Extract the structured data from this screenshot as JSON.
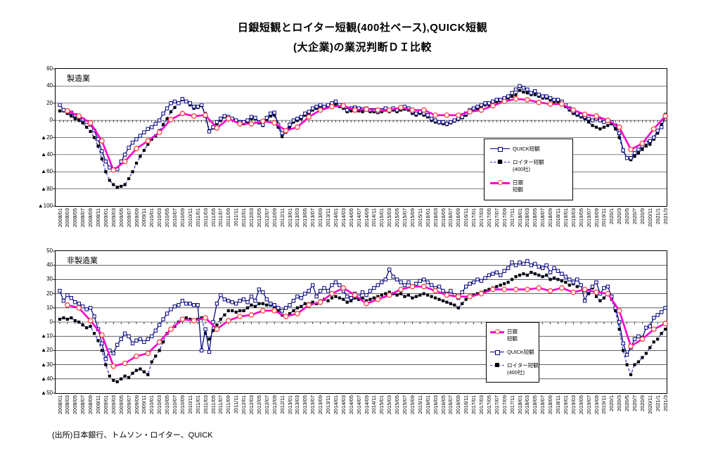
{
  "title": {
    "line1": "日銀短観とロイター短観(400社ベース),QUICK短観",
    "line2": "(大企業)の業況判断ＤＩ比較"
  },
  "source_note": "(出所)日本銀行、トムソン・ロイター、QUICK",
  "x_tick_labels": [
    "2008/01",
    "2008/03",
    "2008/05",
    "2008/07",
    "2008/09",
    "2008/11",
    "2009/01",
    "2009/03",
    "2009/05",
    "2009/07",
    "2009/09",
    "2009/11",
    "2010/01",
    "2010/03",
    "2010/05",
    "2010/07",
    "2010/09",
    "2010/11",
    "2011/01",
    "2011/03",
    "2011/05",
    "2011/07",
    "2011/09",
    "2011/11",
    "2012/01",
    "2012/03",
    "2012/05",
    "2012/07",
    "2012/09",
    "2012/11",
    "2013/01",
    "2013/03",
    "2013/05",
    "2013/07",
    "2013/09",
    "2013/11",
    "2014/01",
    "2014/03",
    "2014/05",
    "2014/07",
    "2014/09",
    "2014/11",
    "2015/01",
    "2015/03",
    "2015/05",
    "2015/07",
    "2015/09",
    "2015/11",
    "2016/01",
    "2016/03",
    "2016/05",
    "2016/07",
    "2016/09",
    "2016/11",
    "2017/01",
    "2017/03",
    "2017/05",
    "2017/07",
    "2017/09",
    "2017/11",
    "2018/01",
    "2018/03",
    "2018/05",
    "2018/07",
    "2018/09",
    "2018/11",
    "2019/01",
    "2019/03",
    "2019/05",
    "2019/07",
    "2019/09",
    "2019/11",
    "2020/1",
    "2020/3",
    "2020/5",
    "2020/7",
    "2020/9",
    "2020/11",
    "2021/1",
    "2021/3"
  ],
  "chart_data": [
    {
      "type": "line",
      "title": "製造業",
      "x_start": "2008/01",
      "x_end": "2021/03",
      "x_freq": "monthly",
      "x_points": 159,
      "ylim": [
        -100,
        60
      ],
      "ytick_step": 20,
      "y_tick_labels": [
        "60",
        "40",
        "20",
        "0",
        "▲20",
        "▲40",
        "▲60",
        "▲80",
        "▲100"
      ],
      "grid": "horizontal",
      "zero_axis_tick_every_months": 1,
      "legend_position": "inside-middle-right",
      "legend_order": [
        "quick",
        "reuters",
        "boj"
      ],
      "series": {
        "quick": {
          "name": "QUICK短観",
          "label_lines": [
            "QUICK短観"
          ],
          "color": "#000080",
          "line": "solid",
          "marker": "open-square",
          "freq": "monthly",
          "values": [
            18,
            12,
            10,
            9,
            6,
            4,
            1,
            -2,
            -5,
            -12,
            -22,
            -36,
            -48,
            -55,
            -57,
            -57,
            -48,
            -40,
            -32,
            -26,
            -22,
            -18,
            -14,
            -10,
            -8,
            -4,
            0,
            8,
            14,
            20,
            22,
            20,
            25,
            22,
            20,
            16,
            16,
            18,
            5,
            -13,
            -8,
            -2,
            2,
            5,
            4,
            2,
            0,
            -2,
            -2,
            0,
            4,
            3,
            -2,
            -5,
            3,
            8,
            9,
            -5,
            -15,
            -12,
            -5,
            0,
            2,
            4,
            8,
            10,
            14,
            16,
            18,
            16,
            18,
            20,
            22,
            18,
            16,
            12,
            14,
            15,
            14,
            13,
            14,
            12,
            12,
            10,
            12,
            14,
            12,
            14,
            12,
            14,
            16,
            14,
            10,
            8,
            10,
            8,
            6,
            2,
            0,
            -2,
            -2,
            -4,
            -2,
            0,
            2,
            4,
            8,
            12,
            14,
            16,
            18,
            20,
            20,
            22,
            24,
            24,
            26,
            28,
            32,
            36,
            40,
            38,
            36,
            32,
            34,
            30,
            28,
            28,
            26,
            24,
            24,
            22,
            18,
            14,
            10,
            8,
            6,
            4,
            2,
            0,
            2,
            0,
            -2,
            0,
            -2,
            -6,
            -15,
            -35,
            -44,
            -44,
            -38,
            -34,
            -30,
            -26,
            -24,
            -20,
            -12,
            -8,
            4
          ]
        },
        "reuters": {
          "name": "ロイター短観(400社)",
          "label_lines": [
            "ロイター短観",
            "(400社)"
          ],
          "color": "#3333cc",
          "marker_color": "#000000",
          "line": "dashed",
          "marker": "filled-square",
          "freq": "monthly",
          "values": [
            11,
            11,
            8,
            5,
            2,
            0,
            -3,
            -8,
            -13,
            -20,
            -30,
            -45,
            -60,
            -70,
            -75,
            -78,
            -77,
            -75,
            -68,
            -60,
            -50,
            -42,
            -35,
            -28,
            -22,
            -18,
            -12,
            -5,
            2,
            10,
            15,
            20,
            24,
            22,
            18,
            14,
            15,
            17,
            8,
            -12,
            -9,
            -4,
            0,
            4,
            4,
            2,
            -1,
            -3,
            -4,
            -2,
            2,
            2,
            -3,
            -6,
            0,
            5,
            6,
            -8,
            -19,
            -14,
            -8,
            -2,
            0,
            2,
            6,
            8,
            12,
            14,
            16,
            14,
            16,
            18,
            18,
            16,
            14,
            10,
            11,
            12,
            11,
            10,
            12,
            10,
            10,
            9,
            10,
            12,
            10,
            12,
            10,
            12,
            13,
            12,
            8,
            6,
            8,
            6,
            4,
            0,
            -2,
            -3,
            -4,
            -5,
            -3,
            -1,
            1,
            3,
            6,
            10,
            12,
            14,
            16,
            18,
            18,
            20,
            22,
            22,
            24,
            26,
            28,
            30,
            35,
            33,
            32,
            30,
            30,
            28,
            26,
            26,
            24,
            22,
            22,
            20,
            16,
            12,
            8,
            6,
            4,
            2,
            -2,
            -6,
            -8,
            -10,
            -8,
            -6,
            -4,
            -10,
            -20,
            -36,
            -44,
            -46,
            -42,
            -38,
            -34,
            -30,
            -28,
            -22,
            -15,
            -5,
            7
          ]
        },
        "boj": {
          "name": "日銀短観",
          "label_lines": [
            "日銀",
            "短観"
          ],
          "color": "#ff00cc",
          "marker_color": "#ff4040",
          "line": "solid-thick",
          "marker": "open-circle",
          "freq": "quarterly",
          "first_month_index": 2,
          "month_step": 3,
          "values": [
            11,
            5,
            -3,
            -24,
            -58,
            -48,
            -33,
            -24,
            -14,
            1,
            8,
            5,
            6,
            -9,
            2,
            -4,
            -4,
            -1,
            -3,
            -12,
            -8,
            4,
            12,
            16,
            17,
            12,
            13,
            12,
            12,
            15,
            12,
            12,
            6,
            6,
            6,
            10,
            12,
            17,
            22,
            25,
            24,
            21,
            19,
            19,
            12,
            7,
            5,
            0,
            -8,
            -34,
            -27,
            -10,
            5
          ]
        }
      }
    },
    {
      "type": "line",
      "title": "非製造業",
      "x_start": "2008/01",
      "x_end": "2021/03",
      "x_freq": "monthly",
      "x_points": 159,
      "ylim": [
        -50,
        50
      ],
      "ytick_step": 10,
      "y_tick_labels": [
        "50",
        "40",
        "30",
        "20",
        "10",
        "0",
        "▲10",
        "▲20",
        "▲30",
        "▲40",
        "▲50"
      ],
      "grid": "horizontal",
      "zero_axis_tick_every_months": 2,
      "legend_position": "inside-middle-right",
      "legend_order": [
        "boj",
        "quick",
        "reuters"
      ],
      "series": {
        "quick": {
          "name": "QUICK短観",
          "label_lines": [
            "QUICK短観"
          ],
          "color": "#000080",
          "line": "solid",
          "marker": "open-square",
          "freq": "monthly",
          "values": [
            22,
            15,
            19,
            17,
            14,
            13,
            11,
            9,
            10,
            4,
            -5,
            -15,
            -26,
            -20,
            -22,
            -16,
            -12,
            -8,
            -10,
            -15,
            -13,
            -12,
            -14,
            -12,
            -10,
            -6,
            -2,
            2,
            6,
            9,
            11,
            12,
            15,
            13,
            13,
            12,
            12,
            -20,
            -5,
            -21,
            0,
            13,
            19,
            16,
            15,
            14,
            13,
            15,
            16,
            14,
            18,
            15,
            23,
            21,
            16,
            13,
            12,
            10,
            8,
            10,
            12,
            15,
            18,
            17,
            20,
            22,
            26,
            18,
            22,
            24,
            22,
            26,
            28,
            26,
            22,
            18,
            17,
            20,
            18,
            21,
            19,
            22,
            24,
            26,
            28,
            30,
            37,
            32,
            30,
            28,
            26,
            28,
            25,
            27,
            29,
            30,
            28,
            26,
            24,
            25,
            22,
            20,
            22,
            19,
            17,
            21,
            25,
            27,
            28,
            30,
            29,
            31,
            33,
            34,
            35,
            33,
            36,
            38,
            42,
            40,
            42,
            41,
            43,
            40,
            41,
            39,
            38,
            40,
            35,
            38,
            36,
            34,
            32,
            30,
            28,
            30,
            26,
            15,
            22,
            25,
            28,
            20,
            24,
            25,
            18,
            10,
            0,
            -15,
            -23,
            -18,
            -12,
            -10,
            -11,
            -4,
            -3,
            3,
            5,
            7,
            10
          ]
        },
        "reuters": {
          "name": "ロイター短観(400社)",
          "label_lines": [
            "ロイター短観",
            "(400社)"
          ],
          "color": "#3333cc",
          "marker_color": "#000000",
          "line": "dashed",
          "marker": "filled-square",
          "freq": "monthly",
          "values": [
            2,
            3,
            2,
            3,
            1,
            0,
            -2,
            -4,
            -3,
            -8,
            -13,
            -20,
            -30,
            -38,
            -41,
            -42,
            -40,
            -38,
            -39,
            -36,
            -34,
            -33,
            -35,
            -37,
            -28,
            -24,
            -20,
            -14,
            -8,
            -5,
            -3,
            0,
            2,
            3,
            2,
            1,
            2,
            3,
            -8,
            -12,
            -6,
            -2,
            2,
            5,
            8,
            8,
            7,
            8,
            8,
            10,
            12,
            11,
            13,
            13,
            12,
            12,
            11,
            8,
            5,
            4,
            6,
            8,
            10,
            11,
            13,
            13,
            14,
            13,
            15,
            16,
            15,
            17,
            18,
            17,
            16,
            14,
            15,
            17,
            16,
            17,
            15,
            16,
            17,
            18,
            19,
            20,
            21,
            20,
            19,
            20,
            18,
            19,
            17,
            18,
            19,
            20,
            19,
            18,
            17,
            16,
            15,
            14,
            13,
            12,
            10,
            13,
            16,
            18,
            19,
            20,
            21,
            22,
            23,
            24,
            25,
            26,
            27,
            28,
            30,
            32,
            33,
            34,
            33,
            35,
            34,
            33,
            32,
            33,
            30,
            31,
            30,
            29,
            28,
            26,
            27,
            25,
            26,
            22,
            20,
            24,
            18,
            15,
            17,
            20,
            16,
            8,
            -5,
            -20,
            -30,
            -37,
            -30,
            -28,
            -25,
            -22,
            -18,
            -14,
            -12,
            -8,
            -5
          ]
        },
        "boj": {
          "name": "日銀短観",
          "label_lines": [
            "日銀",
            "短観"
          ],
          "color": "#ff00cc",
          "marker_color": "#ff4040",
          "line": "solid-thick",
          "marker": "open-circle",
          "freq": "quarterly",
          "first_month_index": 2,
          "month_step": 3,
          "values": [
            12,
            10,
            1,
            -9,
            -31,
            -29,
            -24,
            -22,
            -14,
            -5,
            2,
            1,
            3,
            -5,
            1,
            4,
            5,
            8,
            8,
            4,
            6,
            12,
            14,
            20,
            24,
            19,
            13,
            16,
            19,
            23,
            25,
            25,
            22,
            19,
            18,
            18,
            20,
            23,
            23,
            23,
            23,
            24,
            22,
            24,
            21,
            23,
            21,
            20,
            8,
            -17,
            -12,
            -5,
            -1
          ]
        }
      }
    }
  ],
  "colors": {
    "quick_line": "#000080",
    "reuters_line": "#3333cc",
    "reuters_marker": "#000000",
    "boj_line": "#ff00cc",
    "boj_marker_ring": "#ff4040",
    "grid": "#000000"
  }
}
